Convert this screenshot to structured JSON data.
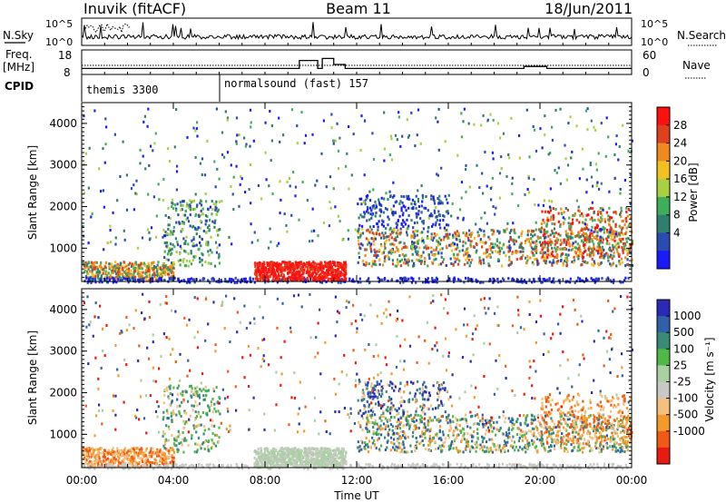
{
  "header": {
    "station": "Inuvik (fitACF)",
    "beam": "Beam 11",
    "date": "18/Jun/2011"
  },
  "panel_labels": {
    "nsky": "N.Sky",
    "nsearch": "N.Search",
    "freq_line1": "Freq.",
    "freq_line2": "[MHz]",
    "nave": "Nave",
    "cpid": "CPID"
  },
  "programs": [
    {
      "label": "themis 3300",
      "start_hour": 0,
      "end_hour": 6
    },
    {
      "label": "normalsound (fast) 157",
      "start_hour": 6,
      "end_hour": 24
    }
  ],
  "colors": {
    "power": [
      "#1a1aff",
      "#2a4bb0",
      "#2f7f6e",
      "#3fae5a",
      "#a8d040",
      "#f2c020",
      "#f08a1e",
      "#e0401e",
      "#ff1010"
    ],
    "velocity": [
      "#e81a12",
      "#f05a14",
      "#f49a2a",
      "#f4c080",
      "#c8c8c4",
      "#a8d0a0",
      "#50b848",
      "#3a8a78",
      "#3060a8",
      "#2a2ab8"
    ]
  },
  "chart_data": [
    {
      "type": "line",
      "name": "N.Sky / N.Search",
      "ylabels": [
        "10^5",
        "10^0"
      ],
      "right_ylabels": [
        "10^5",
        "10^0"
      ],
      "xlim": [
        0,
        24
      ]
    },
    {
      "type": "line",
      "name": "Freq / Nave",
      "ylabels": [
        "18",
        "8"
      ],
      "right_ylabels": [
        "60",
        "0"
      ],
      "segments": [
        {
          "from": 0,
          "to": 6,
          "freq": 11
        },
        {
          "from": 6,
          "to": 9.5,
          "freq": 11
        },
        {
          "from": 9.5,
          "to": 10.3,
          "freq": 15
        },
        {
          "from": 10.3,
          "to": 10.5,
          "freq": 11
        },
        {
          "from": 10.5,
          "to": 11,
          "freq": 16
        },
        {
          "from": 11,
          "to": 11.5,
          "freq": 13
        },
        {
          "from": 11.5,
          "to": 19.3,
          "freq": 11
        },
        {
          "from": 19.3,
          "to": 20.3,
          "freq": 12
        },
        {
          "from": 20.3,
          "to": 24,
          "freq": 11
        }
      ]
    },
    {
      "type": "heatmap",
      "quantity": "power",
      "ylabel": "Slant Range [km]",
      "ylim": [
        200,
        4500
      ],
      "yticks": [
        1000,
        2000,
        3000,
        4000
      ],
      "colorbar_label": "Power [dB]",
      "colorbar_ticks": [
        "28",
        "24",
        "20",
        "16",
        "12",
        "8",
        "4"
      ]
    },
    {
      "type": "heatmap",
      "quantity": "velocity",
      "ylabel": "Slant Range [km]",
      "xlabel": "Time UT",
      "ylim": [
        200,
        4500
      ],
      "yticks": [
        1000,
        2000,
        3000,
        4000
      ],
      "xticks": [
        "00:00",
        "04:00",
        "08:00",
        "12:00",
        "16:00",
        "20:00",
        "00:00"
      ],
      "colorbar_label": "Velocity [m s⁻¹]",
      "colorbar_ticks": [
        "1000",
        "500",
        "100",
        "25",
        "-25",
        "-100",
        "-500",
        "-1000"
      ]
    }
  ]
}
